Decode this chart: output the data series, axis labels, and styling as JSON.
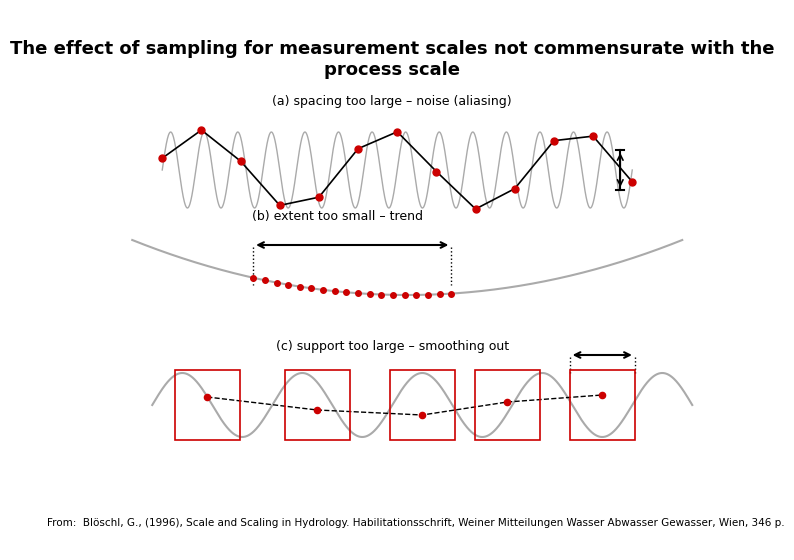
{
  "title": "The effect of sampling for measurement scales not commensurate with the\nprocess scale",
  "title_fontsize": 13,
  "bg_color": "#ffffff",
  "text_color": "#000000",
  "label_a": "(a) spacing too large – noise (aliasing)",
  "label_b": "(b) extent too small – trend",
  "label_c": "(c) support too large – smoothing out",
  "footer": "From:  Blöschl, G., (1996), Scale and Scaling in Hydrology. Habilitationsschrift, Weiner Mitteilungen Wasser Abwasser Gewasser, Wien, 346 p.",
  "dot_color": "#cc0000",
  "line_color": "#000000",
  "wave_color": "#aaaaaa",
  "box_color": "#cc0000"
}
